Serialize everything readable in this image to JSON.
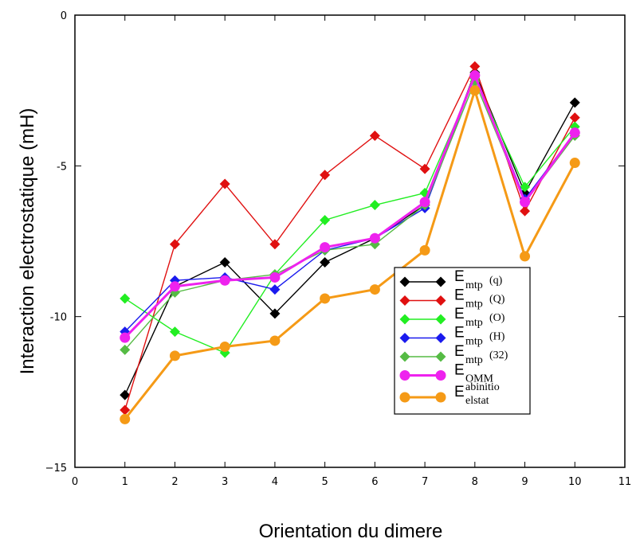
{
  "chart_data": {
    "type": "line",
    "xlabel": "Orientation du dimere",
    "ylabel": "Interaction electrostatique (mH)",
    "xlim": [
      0,
      11
    ],
    "ylim": [
      -15,
      0
    ],
    "x_ticks": [
      "0",
      "1",
      "2",
      "3",
      "4",
      "5",
      "6",
      "7",
      "8",
      "9",
      "10",
      "11"
    ],
    "y_ticks": [
      "0",
      "-5",
      "-10",
      "−15"
    ],
    "grid": false,
    "legend_position": "right",
    "x": [
      1,
      2,
      3,
      4,
      5,
      6,
      7,
      8,
      9,
      10
    ],
    "series": [
      {
        "name_main": "E",
        "name_sub": "mtp",
        "name_tail": "(q)",
        "color": "#000000",
        "marker": "diamond",
        "values": [
          -12.6,
          -9.0,
          -8.2,
          -9.9,
          -8.2,
          -7.4,
          -6.3,
          -1.9,
          -5.9,
          -2.9
        ]
      },
      {
        "name_main": "E",
        "name_sub": "mtp",
        "name_tail": "(Q)",
        "color": "#e01010",
        "marker": "diamond",
        "values": [
          -13.1,
          -7.6,
          -5.6,
          -7.6,
          -5.3,
          -4.0,
          -5.1,
          -1.7,
          -6.5,
          -3.4
        ]
      },
      {
        "name_main": "E",
        "name_sub": "mtp",
        "name_tail": "(O)",
        "color": "#22ee22",
        "marker": "diamond",
        "values": [
          -9.4,
          -10.5,
          -11.2,
          -8.6,
          -6.8,
          -6.3,
          -5.9,
          -2.1,
          -5.7,
          -3.7
        ]
      },
      {
        "name_main": "E",
        "name_sub": "mtp",
        "name_tail": "(H)",
        "color": "#1a1aee",
        "marker": "diamond",
        "values": [
          -10.5,
          -8.8,
          -8.7,
          -9.1,
          -7.8,
          -7.4,
          -6.4,
          -2.0,
          -6.1,
          -3.9
        ]
      },
      {
        "name_main": "E",
        "name_sub": "mtp",
        "name_tail": "(32)",
        "color": "#55bb44",
        "marker": "diamond",
        "values": [
          -11.1,
          -9.2,
          -8.8,
          -8.6,
          -7.8,
          -7.6,
          -6.3,
          -2.2,
          -6.2,
          -4.0
        ]
      },
      {
        "name_main": "E",
        "name_sub": "OMM",
        "name_tail": "",
        "color": "#ee22ee",
        "marker": "circle",
        "values": [
          -10.7,
          -9.0,
          -8.8,
          -8.7,
          -7.7,
          -7.4,
          -6.2,
          -2.0,
          -6.2,
          -3.9
        ]
      },
      {
        "name_main": "E",
        "name_sub": "elstat",
        "name_sup": "abinitio",
        "name_tail": "",
        "color": "#f59a16",
        "marker": "circle",
        "values": [
          -13.4,
          -11.3,
          -11.0,
          -10.8,
          -9.4,
          -9.1,
          -7.8,
          -2.5,
          -8.0,
          -4.9
        ]
      }
    ]
  }
}
